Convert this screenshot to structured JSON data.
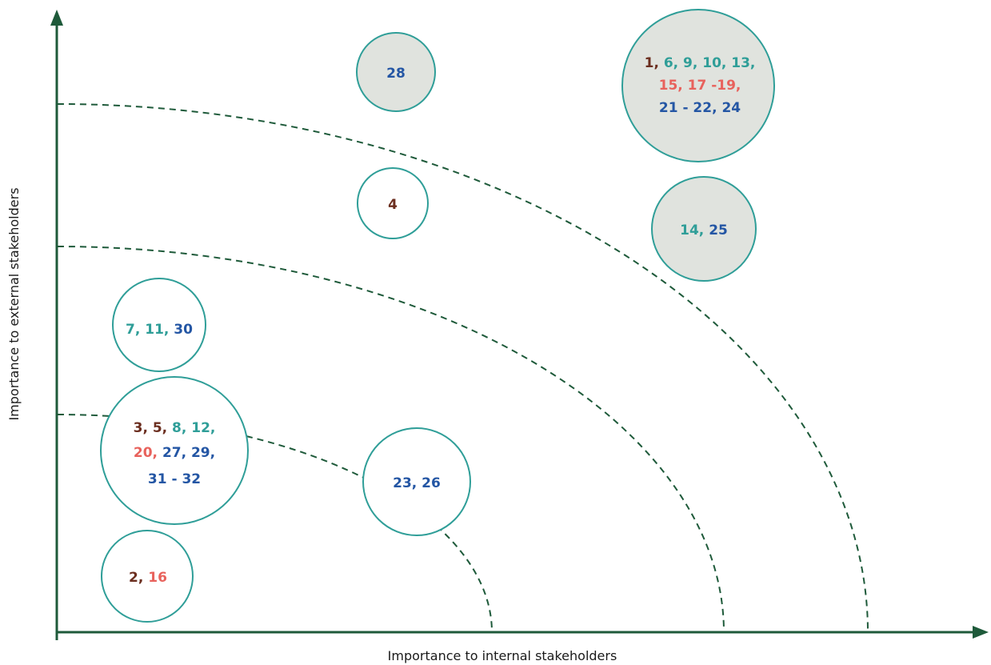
{
  "axes": {
    "x_label": "Importance to internal stakeholders",
    "y_label": "Importance to external stakeholders"
  },
  "colors": {
    "axis": "#1e5a3a",
    "dashed_arc": "#1e5a3a",
    "bubble_stroke": "#2f9e98",
    "bubble_fill_high": "#e0e3de",
    "bubble_fill_default": "#ffffff",
    "group_brown": "#6b2e1f",
    "group_teal": "#2f9e98",
    "group_red": "#e8625c",
    "group_blue": "#2456a4"
  },
  "bubbles": [
    {
      "id": "bubble-28",
      "filled": true,
      "lines": [
        [
          {
            "t": "28",
            "c": "blue"
          }
        ]
      ]
    },
    {
      "id": "bubble-top-right",
      "filled": true,
      "lines": [
        [
          {
            "t": "1, ",
            "c": "brown"
          },
          {
            "t": "6, 9, 10, 13,",
            "c": "teal"
          }
        ],
        [
          {
            "t": "15, 17 -19,",
            "c": "red"
          }
        ],
        [
          {
            "t": "21 - 22, 24",
            "c": "blue"
          }
        ]
      ]
    },
    {
      "id": "bubble-4",
      "filled": false,
      "lines": [
        [
          {
            "t": "4",
            "c": "brown"
          }
        ]
      ]
    },
    {
      "id": "bubble-14-25",
      "filled": true,
      "lines": [
        [
          {
            "t": "14, ",
            "c": "teal"
          },
          {
            "t": "25",
            "c": "blue"
          }
        ]
      ]
    },
    {
      "id": "bubble-7-11-30",
      "filled": false,
      "lines": [
        [
          {
            "t": "7, 11, ",
            "c": "teal"
          },
          {
            "t": "30",
            "c": "blue"
          }
        ]
      ]
    },
    {
      "id": "bubble-large-left",
      "filled": false,
      "lines": [
        [
          {
            "t": "3, 5, ",
            "c": "brown"
          },
          {
            "t": "8, 12,",
            "c": "teal"
          }
        ],
        [
          {
            "t": "20, ",
            "c": "red"
          },
          {
            "t": "27, 29,",
            "c": "blue"
          }
        ],
        [
          {
            "t": "31 - 32",
            "c": "blue"
          }
        ]
      ]
    },
    {
      "id": "bubble-23-26",
      "filled": false,
      "lines": [
        [
          {
            "t": "23, 26",
            "c": "blue"
          }
        ]
      ]
    },
    {
      "id": "bubble-2-16",
      "filled": false,
      "lines": [
        [
          {
            "t": "2, ",
            "c": "brown"
          },
          {
            "t": "16",
            "c": "red"
          }
        ]
      ]
    }
  ]
}
